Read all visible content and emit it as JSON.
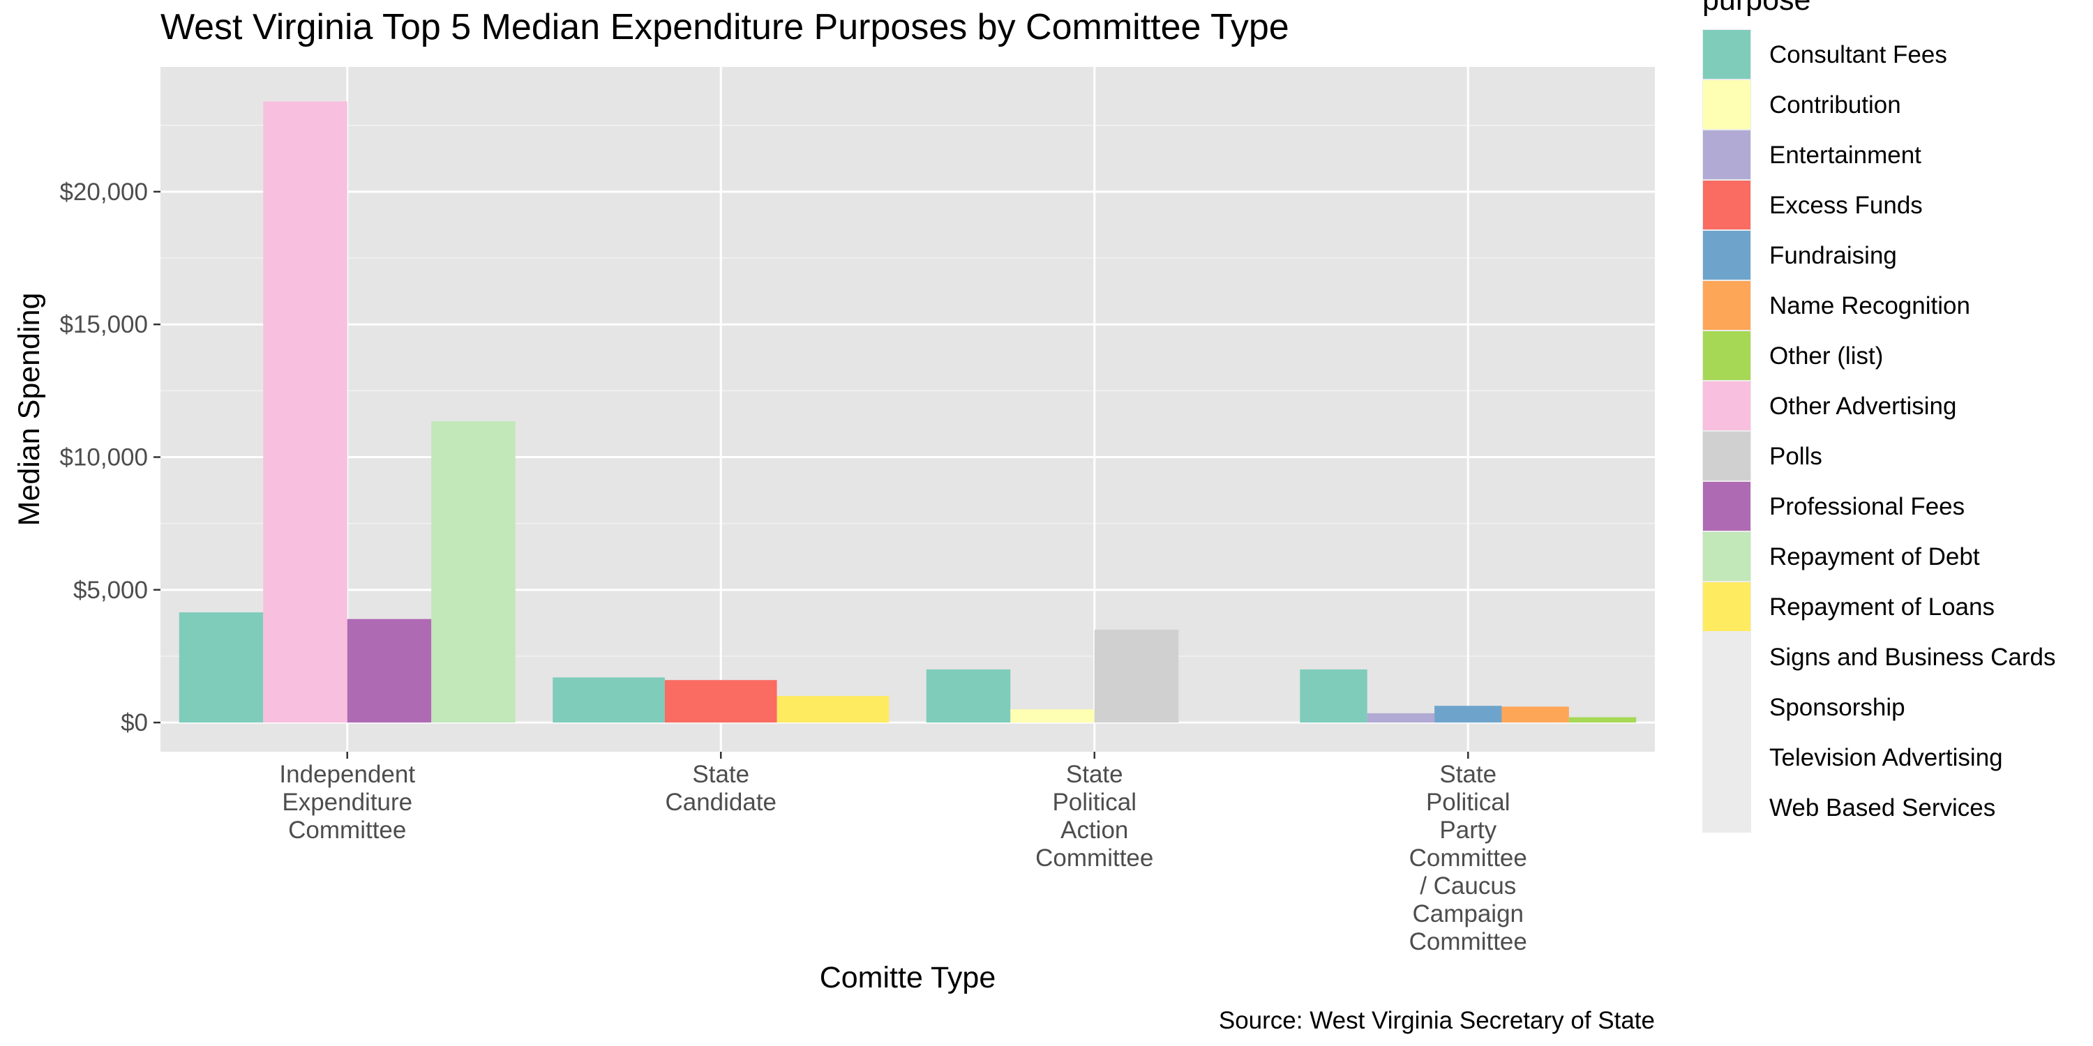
{
  "chart_data": {
    "type": "bar",
    "title": "West Virginia Top 5 Median Expenditure Purposes by Committee Type",
    "xlabel": "Comitte Type",
    "ylabel": "Median Spending",
    "caption": "Source: West Virginia Secretary of State",
    "ylim": [
      -1100,
      24700
    ],
    "y_ticks": [
      {
        "value": 0,
        "label": "$0"
      },
      {
        "value": 5000,
        "label": "$5,000"
      },
      {
        "value": 10000,
        "label": "$10,000"
      },
      {
        "value": 15000,
        "label": "$15,000"
      },
      {
        "value": 20000,
        "label": "$20,000"
      }
    ],
    "grid": true,
    "legend_placement": "right",
    "legend_title": "purpose",
    "legend": [
      {
        "label": "Consultant Fees",
        "color": "#7fccbb"
      },
      {
        "label": "Contribution",
        "color": "#ffffb3"
      },
      {
        "label": "Entertainment",
        "color": "#b0aad4"
      },
      {
        "label": "Excess Funds",
        "color": "#fa6b62"
      },
      {
        "label": "Fundraising",
        "color": "#6ea4cc"
      },
      {
        "label": "Name Recognition",
        "color": "#fda658"
      },
      {
        "label": "Other (list)",
        "color": "#a6d855"
      },
      {
        "label": "Other Advertising",
        "color": "#f8c0de"
      },
      {
        "label": "Polls",
        "color": "#d0d0d0"
      },
      {
        "label": "Professional Fees",
        "color": "#ae6ab3"
      },
      {
        "label": "Repayment of Debt",
        "color": "#c2e7b9"
      },
      {
        "label": "Repayment of Loans",
        "color": "#ffeb60"
      },
      {
        "label": "Signs and Business Cards",
        "color": "#ebebeb"
      },
      {
        "label": "Sponsorship",
        "color": "#ebebeb"
      },
      {
        "label": "Television Advertising",
        "color": "#ebebeb"
      },
      {
        "label": "Web Based Services",
        "color": "#ebebeb"
      }
    ],
    "groups": [
      {
        "label": "Independent\nExpenditure\nCommittee",
        "bars": [
          {
            "purpose": "Consultant Fees",
            "value": 4150
          },
          {
            "purpose": "Other Advertising",
            "value": 23400
          },
          {
            "purpose": "Professional Fees",
            "value": 3900
          },
          {
            "purpose": "Repayment of Debt",
            "value": 11350
          }
        ]
      },
      {
        "label": "State\nCandidate",
        "bars": [
          {
            "purpose": "Consultant Fees",
            "value": 1700
          },
          {
            "purpose": "Excess Funds",
            "value": 1600
          },
          {
            "purpose": "Repayment of Loans",
            "value": 1000
          }
        ]
      },
      {
        "label": "State\nPolitical\nAction\nCommittee",
        "bars": [
          {
            "purpose": "Consultant Fees",
            "value": 2000
          },
          {
            "purpose": "Contribution",
            "value": 500
          },
          {
            "purpose": "Polls",
            "value": 3500
          },
          {
            "purpose": "Signs and Business Cards",
            "value": 0
          }
        ]
      },
      {
        "label": "State\nPolitical\nParty\nCommittee\n/ Caucus\nCampaign\nCommittee",
        "bars": [
          {
            "purpose": "Consultant Fees",
            "value": 2000
          },
          {
            "purpose": "Entertainment",
            "value": 350
          },
          {
            "purpose": "Fundraising",
            "value": 630
          },
          {
            "purpose": "Name Recognition",
            "value": 600
          },
          {
            "purpose": "Other (list)",
            "value": 200
          }
        ]
      }
    ]
  }
}
